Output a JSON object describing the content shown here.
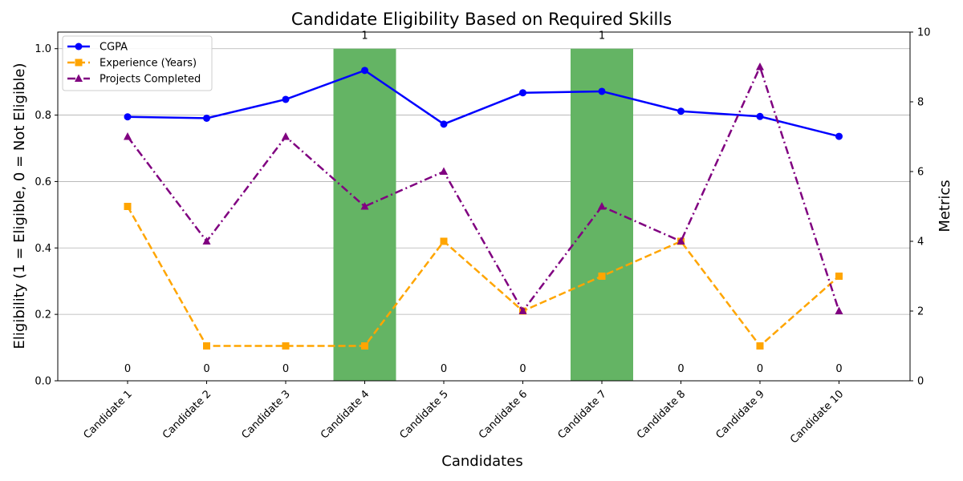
{
  "chart_data": {
    "type": "bar+line",
    "title": "Candidate Eligibility Based on Required Skills",
    "xlabel": "Candidates",
    "ylabel_left": "Eligibility (1 = Eligible, 0 = Not Eligible)",
    "ylabel_right": "Metrics",
    "categories": [
      "Candidate 1",
      "Candidate 2",
      "Candidate 3",
      "Candidate 4",
      "Candidate 5",
      "Candidate 6",
      "Candidate 7",
      "Candidate 8",
      "Candidate 9",
      "Candidate 10"
    ],
    "eligibility": [
      0,
      0,
      0,
      1,
      0,
      0,
      1,
      0,
      0,
      0
    ],
    "eligibility_labels": [
      "0",
      "0",
      "0",
      "1",
      "0",
      "0",
      "1",
      "0",
      "0",
      "0"
    ],
    "bar_color": "#64b464",
    "ylim_left": [
      0,
      1.05
    ],
    "yticks_left": [
      "0.0",
      "0.2",
      "0.4",
      "0.6",
      "0.8",
      "1.0"
    ],
    "ylim_right": [
      0,
      10
    ],
    "yticks_right": [
      "0",
      "2",
      "4",
      "6",
      "8",
      "10"
    ],
    "grid": true,
    "legend_position": "top-left",
    "series": [
      {
        "name": "CGPA",
        "color": "#0000ff",
        "marker": "circle",
        "dash": "solid",
        "values": [
          7.57,
          7.53,
          8.07,
          8.9,
          7.36,
          8.26,
          8.3,
          7.73,
          7.58,
          7.01
        ]
      },
      {
        "name": "Experience (Years)",
        "color": "#ffa500",
        "marker": "square",
        "dash": "dashed",
        "values": [
          5,
          1,
          1,
          1,
          4,
          2,
          3,
          4,
          1,
          3
        ]
      },
      {
        "name": "Projects Completed",
        "color": "#800080",
        "marker": "triangle",
        "dash": "dashdot",
        "values": [
          7,
          4,
          7,
          5,
          6,
          2,
          5,
          4,
          9,
          2
        ]
      }
    ]
  }
}
